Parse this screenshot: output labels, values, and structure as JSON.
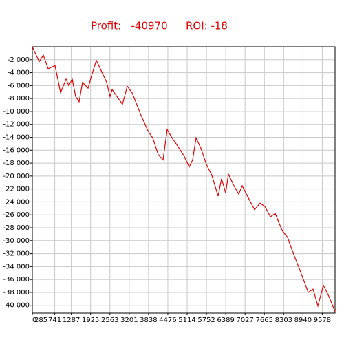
{
  "chart_data": {
    "type": "line",
    "title": "Profit:   -40970",
    "subtitle": "ROI: -18",
    "x": [
      0,
      227,
      364,
      523,
      750,
      932,
      1114,
      1205,
      1318,
      1432,
      1545,
      1659,
      1841,
      1955,
      2114,
      2295,
      2455,
      2568,
      2636,
      2795,
      2977,
      3136,
      3295,
      3591,
      3818,
      3977,
      4159,
      4318,
      4455,
      4614,
      4795,
      5023,
      5182,
      5295,
      5409,
      5568,
      5750,
      5932,
      6136,
      6250,
      6386,
      6477,
      6659,
      6818,
      6932,
      7159,
      7341,
      7523,
      7682,
      7864,
      8023,
      8250,
      8432,
      8591,
      8818,
      9114,
      9273,
      9432,
      9614,
      9795,
      10000
    ],
    "series": [
      {
        "name": "Profit",
        "color": "#e00000",
        "values": [
          0,
          -2300,
          -1300,
          -3400,
          -2900,
          -7100,
          -5000,
          -6000,
          -5000,
          -7700,
          -8500,
          -5500,
          -6400,
          -4500,
          -2100,
          -3900,
          -5500,
          -7700,
          -6600,
          -7700,
          -8900,
          -6100,
          -7100,
          -10600,
          -13000,
          -14100,
          -16700,
          -17500,
          -12800,
          -14100,
          -15300,
          -17000,
          -18600,
          -17500,
          -14100,
          -15700,
          -18200,
          -19900,
          -23100,
          -20400,
          -22600,
          -19700,
          -21500,
          -22800,
          -21500,
          -23600,
          -25200,
          -24200,
          -24700,
          -26300,
          -25800,
          -28400,
          -29500,
          -31600,
          -34300,
          -38000,
          -37500,
          -40100,
          -36900,
          -38600,
          -40970
        ]
      }
    ],
    "xlim": [
      0,
      10000
    ],
    "xticks": [
      0,
      285,
      741,
      1287,
      1925,
      2563,
      3201,
      3838,
      4476,
      5114,
      5752,
      6389,
      7027,
      7665,
      8303,
      8940,
      9578
    ],
    "ylim": [
      -41200,
      0
    ],
    "yticks": [
      {
        "value": -2000,
        "label": "-2 000"
      },
      {
        "value": -4000,
        "label": "-4 000"
      },
      {
        "value": -6000,
        "label": "-6 000"
      },
      {
        "value": -8000,
        "label": "-8 000"
      },
      {
        "value": -10000,
        "label": "-10 000"
      },
      {
        "value": -12000,
        "label": "-12 000"
      },
      {
        "value": -14000,
        "label": "-14 000"
      },
      {
        "value": -16000,
        "label": "-16 000"
      },
      {
        "value": -18000,
        "label": "-18 000"
      },
      {
        "value": -20000,
        "label": "-20 000"
      },
      {
        "value": -22000,
        "label": "-22 000"
      },
      {
        "value": -24000,
        "label": "-24 000"
      },
      {
        "value": -26000,
        "label": "-26 000"
      },
      {
        "value": -28000,
        "label": "-28 000"
      },
      {
        "value": -30000,
        "label": "-30 000"
      },
      {
        "value": -32000,
        "label": "-32 000"
      },
      {
        "value": -34000,
        "label": "-34 000"
      },
      {
        "value": -36000,
        "label": "-36 000"
      },
      {
        "value": -38000,
        "label": "-38 000"
      },
      {
        "value": -40000,
        "label": "-40 000"
      }
    ],
    "grid": true
  }
}
